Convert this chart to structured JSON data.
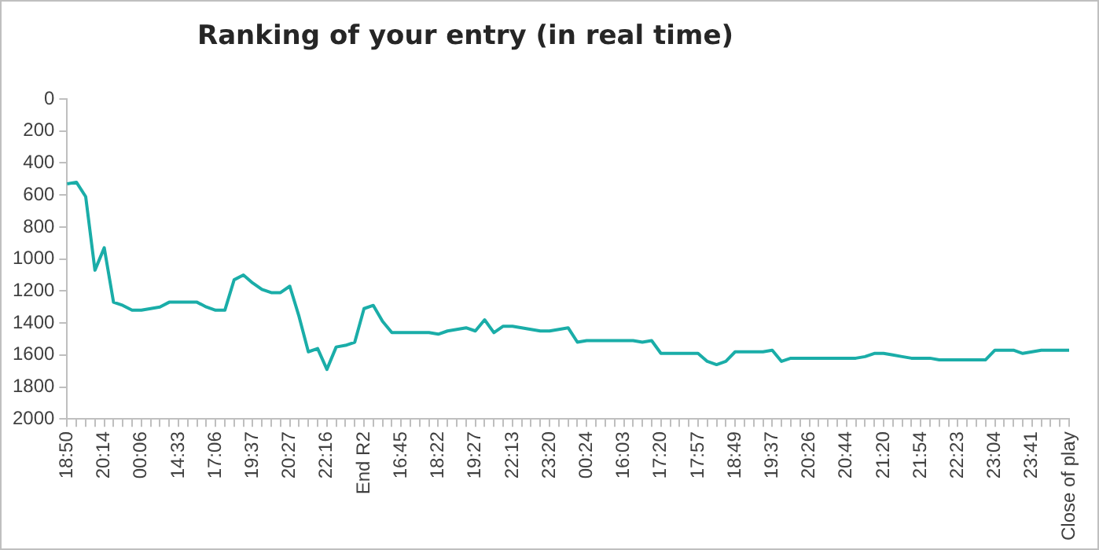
{
  "chart_data": {
    "type": "line",
    "title": "Ranking of your entry (in real time)",
    "categories": [
      "18:50",
      null,
      null,
      null,
      "20:14",
      null,
      null,
      null,
      "00:06",
      null,
      null,
      null,
      "14:33",
      null,
      null,
      null,
      "17:06",
      null,
      null,
      null,
      "19:37",
      null,
      null,
      null,
      "20:27",
      null,
      null,
      null,
      "22:16",
      null,
      null,
      null,
      "End R2",
      null,
      null,
      null,
      "16:45",
      null,
      null,
      null,
      "18:22",
      null,
      null,
      null,
      "19:27",
      null,
      null,
      null,
      "22:13",
      null,
      null,
      null,
      "23:20",
      null,
      null,
      null,
      "00:24",
      null,
      null,
      null,
      "16:03",
      null,
      null,
      null,
      "17:20",
      null,
      null,
      null,
      "17:57",
      null,
      null,
      null,
      "18:49",
      null,
      null,
      null,
      "19:37",
      null,
      null,
      null,
      "20:26",
      null,
      null,
      null,
      "20:44",
      null,
      null,
      null,
      "21:20",
      null,
      null,
      null,
      "21:54",
      null,
      null,
      null,
      "22:23",
      null,
      null,
      null,
      "23:04",
      null,
      null,
      null,
      "23:41",
      null,
      null,
      null,
      "Close of play"
    ],
    "series": [
      {
        "color": "#1aada8",
        "values": [
          530,
          520,
          610,
          1070,
          930,
          1270,
          1290,
          1320,
          1320,
          1310,
          1300,
          1270,
          1270,
          1270,
          1270,
          1300,
          1320,
          1320,
          1130,
          1100,
          1150,
          1190,
          1210,
          1210,
          1170,
          1360,
          1580,
          1560,
          1690,
          1550,
          1540,
          1520,
          1310,
          1290,
          1390,
          1460,
          1460,
          1460,
          1460,
          1460,
          1470,
          1450,
          1440,
          1430,
          1450,
          1380,
          1460,
          1420,
          1420,
          1430,
          1440,
          1450,
          1450,
          1440,
          1430,
          1520,
          1510,
          1510,
          1510,
          1510,
          1510,
          1510,
          1520,
          1510,
          1590,
          1590,
          1590,
          1590,
          1590,
          1640,
          1660,
          1640,
          1580,
          1580,
          1580,
          1580,
          1570,
          1640,
          1620,
          1620,
          1620,
          1620,
          1620,
          1620,
          1620,
          1620,
          1610,
          1590,
          1590,
          1600,
          1610,
          1620,
          1620,
          1620,
          1630,
          1630,
          1630,
          1630,
          1630,
          1630,
          1570,
          1570,
          1570,
          1590,
          1580,
          1570,
          1570,
          1570,
          1570
        ]
      }
    ],
    "ylim": [
      2000,
      0
    ],
    "yticks": [
      0,
      200,
      400,
      600,
      800,
      1000,
      1200,
      1400,
      1600,
      1800,
      2000
    ],
    "grid": false,
    "legend": false,
    "marker": "none",
    "line_style": "solid"
  }
}
